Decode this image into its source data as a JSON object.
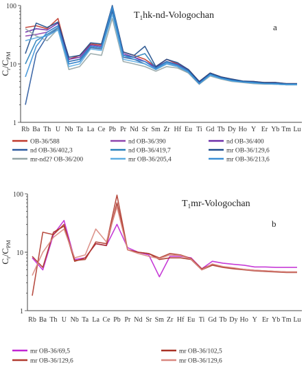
{
  "chart_data": [
    {
      "type": "line",
      "panel_label": "a",
      "title_prefix": "T",
      "title_sub": "1",
      "title_rest": "hk-nd-Vologochan",
      "ylabel_main": "C",
      "ylabel_sub1": "r",
      "ylabel_mid": "/C",
      "ylabel_sub2": "PM",
      "yscale": "log",
      "ylim": [
        1,
        100
      ],
      "ytick_labels": [
        "1",
        "10",
        "100"
      ],
      "legend_position": "bottom",
      "categories": [
        "Rb",
        "Ba",
        "Th",
        "U",
        "Nb",
        "Ta",
        "La",
        "Ce",
        "Pb",
        "Pr",
        "Nd",
        "Sr",
        "Sm",
        "Zr",
        "Hf",
        "Eu",
        "Ti",
        "Gd",
        "Tb",
        "Dy",
        "Ho",
        "Y",
        "Er",
        "Yb",
        "Tm",
        "Lu"
      ],
      "series": [
        {
          "name": "OB-36/588",
          "color": "#c0392b",
          "values": [
            42,
            45,
            40,
            60,
            12,
            14,
            22,
            21,
            95,
            16,
            14,
            12,
            9,
            12,
            10,
            8,
            5,
            7,
            6,
            5.5,
            5,
            5,
            4.8,
            4.8,
            4.6,
            4.6
          ]
        },
        {
          "name": "nd OB-36/390",
          "color": "#8e44ad",
          "values": [
            30,
            32,
            35,
            45,
            11,
            12,
            20,
            19,
            85,
            14,
            13,
            11,
            8.5,
            11,
            9.5,
            7.5,
            4.8,
            6.6,
            5.8,
            5.3,
            5,
            4.8,
            4.7,
            4.6,
            4.5,
            4.5
          ]
        },
        {
          "name": "nd OB-36/400",
          "color": "#6c2ea8",
          "values": [
            35,
            40,
            38,
            50,
            12,
            13,
            21,
            20,
            90,
            15,
            13,
            11,
            8.8,
            11,
            9.8,
            7.8,
            4.9,
            6.8,
            5.9,
            5.4,
            5,
            4.9,
            4.7,
            4.7,
            4.5,
            4.5
          ]
        },
        {
          "name": "nd OB-36/402,3",
          "color": "#2c5aa0",
          "values": [
            2,
            15,
            30,
            40,
            10,
            11,
            19,
            18,
            80,
            13,
            12,
            10,
            8,
            10,
            9,
            7,
            4.5,
            6.5,
            5.6,
            5.2,
            4.9,
            4.7,
            4.6,
            4.5,
            4.4,
            4.4
          ]
        },
        {
          "name": "nd OB-36/419,7",
          "color": "#2980b9",
          "values": [
            10,
            25,
            32,
            42,
            11,
            12,
            20,
            19,
            88,
            14,
            13,
            15,
            8.5,
            11,
            9.6,
            7.6,
            4.7,
            6.7,
            5.8,
            5.3,
            5,
            4.8,
            4.7,
            4.6,
            4.5,
            4.5
          ]
        },
        {
          "name": "mr OB-36/129,6",
          "color": "#1f4e8c",
          "values": [
            15,
            50,
            42,
            52,
            13,
            14,
            23,
            22,
            100,
            16,
            14,
            20,
            9,
            12,
            10.5,
            8,
            5,
            7,
            6,
            5.5,
            5.1,
            5,
            4.8,
            4.8,
            4.6,
            4.6
          ]
        },
        {
          "name": "mr-nd2? OB-36/200",
          "color": "#95a5a6",
          "values": [
            40,
            30,
            25,
            40,
            8,
            9,
            15,
            14,
            60,
            11,
            10,
            9,
            7.5,
            9,
            8.5,
            7,
            4.5,
            6.2,
            5.5,
            5,
            4.8,
            4.6,
            4.5,
            4.5,
            4.4,
            4.4
          ]
        },
        {
          "name": "mr OB-36/205,4",
          "color": "#5dade2",
          "values": [
            25,
            28,
            30,
            38,
            9,
            10,
            18,
            17,
            70,
            12,
            11,
            10,
            8,
            10,
            9,
            7.2,
            4.6,
            6.4,
            5.6,
            5.1,
            4.9,
            4.7,
            4.6,
            4.5,
            4.4,
            4.4
          ]
        },
        {
          "name": "mr OB-36/213,6",
          "color": "#3a8fd6",
          "values": [
            6,
            20,
            35,
            45,
            10,
            11,
            20,
            19,
            95,
            14,
            12,
            11,
            8.2,
            10.5,
            9.4,
            7.4,
            4.6,
            6.6,
            5.7,
            5.2,
            4.9,
            4.8,
            4.6,
            4.6,
            4.5,
            4.5
          ]
        }
      ]
    },
    {
      "type": "line",
      "panel_label": "b",
      "title_prefix": "T",
      "title_sub": "1",
      "title_rest": "mr-Vologochan",
      "ylabel_main": "C",
      "ylabel_sub1": "r",
      "ylabel_mid": "/C",
      "ylabel_sub2": "PM",
      "yscale": "log",
      "ylim": [
        1,
        100
      ],
      "ytick_labels": [
        "1",
        "10",
        "100"
      ],
      "legend_position": "bottom",
      "categories": [
        "Rb",
        "Ba",
        "Th",
        "U",
        "Nb",
        "Ta",
        "La",
        "Ce",
        "Pb",
        "Pr",
        "Nd",
        "Sr",
        "Sm",
        "Zr",
        "Hf",
        "Eu",
        "Ti",
        "Gd",
        "Tb",
        "Dy",
        "Ho",
        "Y",
        "Er",
        "Yb",
        "Tm",
        "Lu"
      ],
      "series": [
        {
          "name": "mr OB-36/69,5",
          "color": "#c026d3",
          "values": [
            8,
            5,
            20,
            35,
            7.5,
            8,
            14,
            13,
            30,
            12,
            10,
            9,
            3.8,
            8.5,
            8.5,
            8,
            5.2,
            7,
            6.5,
            6.2,
            6,
            5.6,
            5.6,
            5.5,
            5.5,
            5.5
          ]
        },
        {
          "name": "mr OB-36/102,5",
          "color": "#a93226",
          "values": [
            8.5,
            5.5,
            22,
            28,
            7,
            8,
            14,
            13,
            70,
            11,
            10,
            9.5,
            7.5,
            8,
            8,
            7.5,
            5,
            6,
            5.5,
            5.2,
            5,
            4.8,
            4.7,
            4.6,
            4.5,
            4.5
          ]
        },
        {
          "name": "mr OB-36/129,6",
          "color": "#b03a2e",
          "values": [
            1.8,
            22,
            20,
            30,
            7.2,
            7.5,
            15,
            14,
            95,
            11,
            10,
            9.5,
            8,
            9.5,
            9,
            7.8,
            5.2,
            6.2,
            5.6,
            5.3,
            5.1,
            4.9,
            4.8,
            4.7,
            4.6,
            4.6
          ]
        },
        {
          "name": "mr OB-36/129,6",
          "color": "#d98880",
          "values": [
            4,
            10,
            18,
            25,
            8,
            9,
            25,
            15,
            60,
            11,
            9.5,
            8.5,
            7.8,
            9,
            8.8,
            7.6,
            5,
            6.3,
            5.7,
            5.4,
            5.1,
            4.9,
            4.8,
            4.7,
            4.6,
            4.6
          ]
        }
      ]
    }
  ]
}
